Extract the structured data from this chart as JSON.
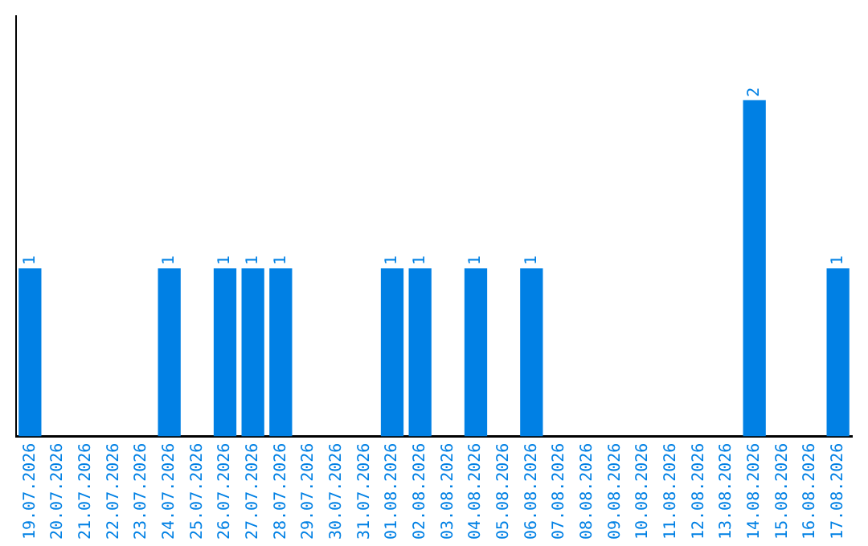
{
  "chart_data": {
    "type": "bar",
    "categories": [
      "19.07.2026",
      "20.07.2026",
      "21.07.2026",
      "22.07.2026",
      "23.07.2026",
      "24.07.2026",
      "25.07.2026",
      "26.07.2026",
      "27.07.2026",
      "28.07.2026",
      "29.07.2026",
      "30.07.2026",
      "31.07.2026",
      "01.08.2026",
      "02.08.2026",
      "03.08.2026",
      "04.08.2026",
      "05.08.2026",
      "06.08.2026",
      "07.08.2026",
      "08.08.2026",
      "09.08.2026",
      "10.08.2026",
      "11.08.2026",
      "12.08.2026",
      "13.08.2026",
      "14.08.2026",
      "15.08.2026",
      "16.08.2026",
      "17.08.2026"
    ],
    "values": [
      1,
      0,
      0,
      0,
      0,
      1,
      0,
      1,
      1,
      1,
      0,
      0,
      0,
      1,
      1,
      0,
      1,
      0,
      1,
      0,
      0,
      0,
      0,
      0,
      0,
      0,
      2,
      0,
      0,
      1
    ],
    "value_labels": [
      "1",
      null,
      null,
      null,
      null,
      "1",
      null,
      "1",
      "1",
      "1",
      null,
      null,
      null,
      "1",
      "1",
      null,
      "1",
      null,
      "1",
      null,
      null,
      null,
      null,
      null,
      null,
      null,
      "2",
      null,
      null,
      "1"
    ],
    "color": "#0080e4",
    "grid": false,
    "legend": false
  }
}
